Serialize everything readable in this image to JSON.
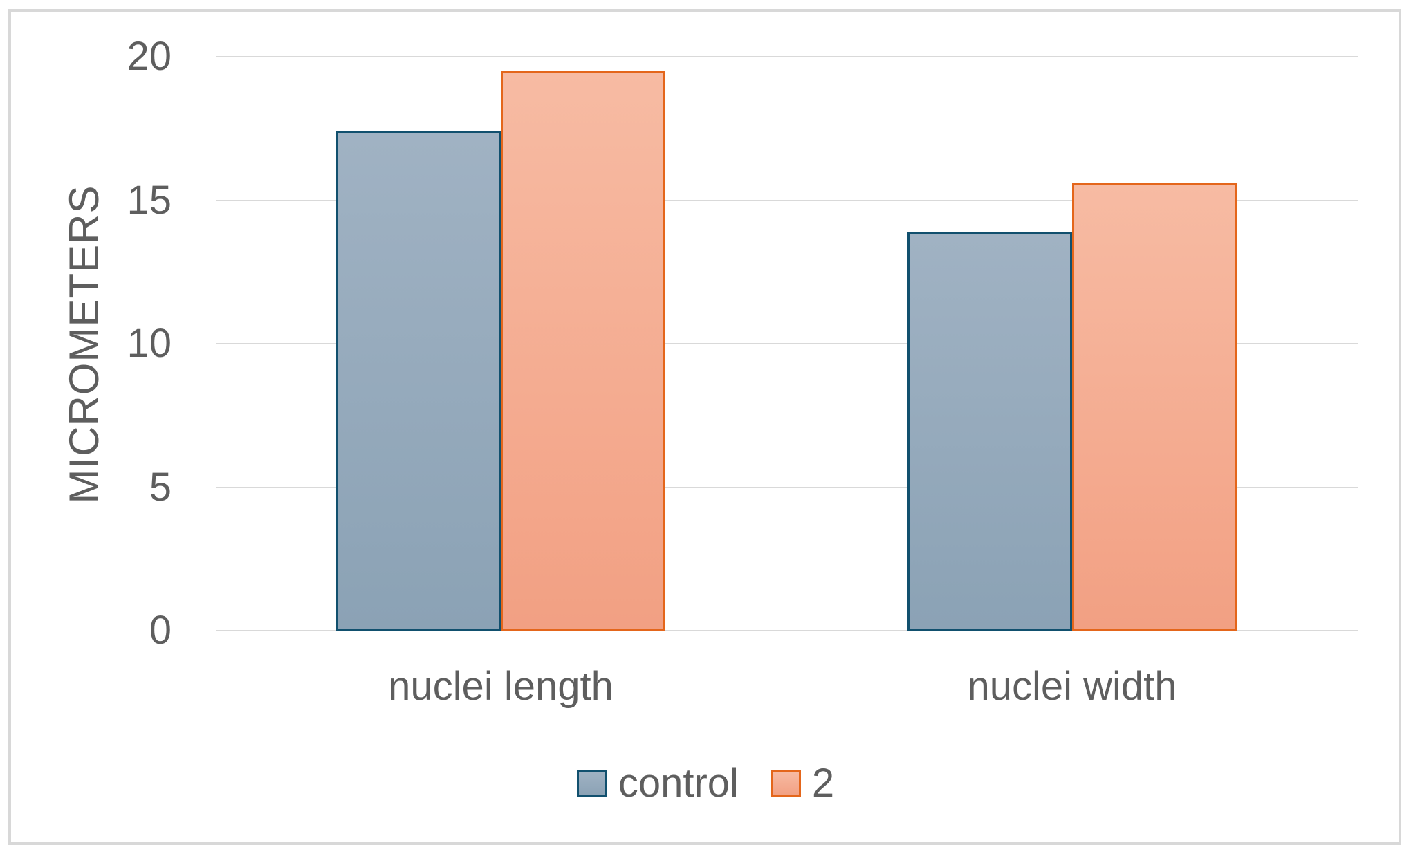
{
  "chart_data": {
    "type": "bar",
    "categories": [
      "nuclei length",
      "nuclei width"
    ],
    "series": [
      {
        "name": "control",
        "values": [
          17.4,
          13.9
        ],
        "fill_top": "#A0B2C3",
        "fill_bottom": "#8BA2B5",
        "border": "#11506E"
      },
      {
        "name": "2",
        "values": [
          19.5,
          15.6
        ],
        "fill_top": "#F7BBA3",
        "fill_bottom": "#F2A083",
        "border": "#E4661B"
      }
    ],
    "title": "",
    "xlabel": "",
    "ylabel": "MICROMETERS",
    "yticks": [
      0,
      5,
      10,
      15,
      20
    ],
    "ylim": [
      0,
      20
    ],
    "grid": "horizontal",
    "legend_position": "bottom"
  },
  "colors": {
    "text": "#5E5E5E",
    "gridline": "#D9D9D9",
    "frame_border": "#D8D8D8",
    "background": "#FFFFFF"
  }
}
